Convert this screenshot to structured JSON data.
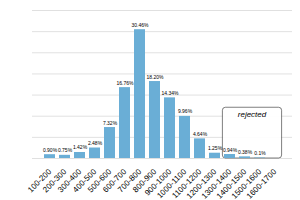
{
  "chart_data": {
    "type": "bar",
    "categories": [
      "100-200",
      "200-300",
      "300-400",
      "400-500",
      "500-600",
      "600-700",
      "700-800",
      "800-900",
      "900-1000",
      "1000-1100",
      "1100-1200",
      "1200-1300",
      "1300-1400",
      "1400-1500",
      "1500-1600",
      "1600-1700"
    ],
    "values": [
      0.9,
      0.75,
      1.42,
      2.48,
      7.32,
      16.76,
      30.46,
      18.2,
      14.34,
      9.96,
      4.64,
      1.25,
      0.94,
      0.38,
      0.1,
      0.0
    ],
    "value_labels": [
      "0.90%",
      "0.75%",
      "1.42%",
      "2.48%",
      "7.32%",
      "16.76%",
      "30.46%",
      "18.20%",
      "14.34%",
      "9.96%",
      "4.64%",
      "1.25%",
      "0.94%",
      "0.38%",
      "0.1%",
      null
    ],
    "data_labels": true,
    "color": "#6aaed6",
    "ylim": [
      0,
      35
    ],
    "yticks": [
      0,
      5,
      10,
      15,
      20,
      25,
      30,
      35
    ],
    "grid": true,
    "tick_labels": "x",
    "annotations": [
      {
        "text": "rejected",
        "x": [
          "1300-1400",
          "1600-1700"
        ],
        "y": [
          0,
          12
        ]
      }
    ]
  }
}
